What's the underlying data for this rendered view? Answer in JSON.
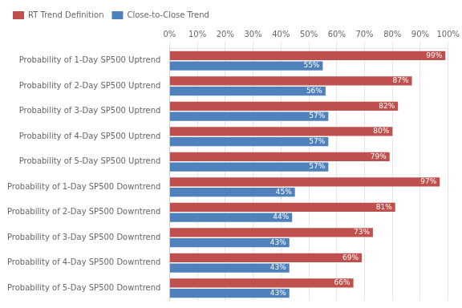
{
  "chart_data": {
    "type": "bar",
    "orientation": "horizontal",
    "categories": [
      "Probability of 1-Day SP500 Uptrend",
      "Probability of 2-Day SP500 Uptrend",
      "Probability of 3-Day SP500 Uptrend",
      "Probability of 4-Day SP500 Uptrend",
      "Probability of 5-Day SP500 Uptrend",
      "Probability of 1-Day SP500 Downtrend",
      "Probability of 2-Day SP500 Downtrend",
      "Probability of 3-Day SP500 Downtrend",
      "Probability of 4-Day SP500 Downtrend",
      "Probability of 5-Day SP500 Downtrend"
    ],
    "series": [
      {
        "name": "RT Trend Definition",
        "color": "#C0504D",
        "values": [
          99,
          87,
          82,
          80,
          79,
          97,
          81,
          73,
          69,
          66
        ],
        "value_labels": [
          "99%",
          "87%",
          "82%",
          "80%",
          "79%",
          "97%",
          "81%",
          "73%",
          "69%",
          "66%"
        ]
      },
      {
        "name": "Close-to-Close Trend",
        "color": "#4F81BD",
        "values": [
          55,
          56,
          57,
          57,
          57,
          45,
          44,
          43,
          43,
          43
        ],
        "value_labels": [
          "55%",
          "56%",
          "57%",
          "57%",
          "57%",
          "45%",
          "44%",
          "43%",
          "43%",
          "43%"
        ]
      }
    ],
    "xlim": [
      0,
      100
    ],
    "xticks": [
      {
        "value": 0,
        "label": "0%"
      },
      {
        "value": 10,
        "label": "10%"
      },
      {
        "value": 20,
        "label": "20%"
      },
      {
        "value": 30,
        "label": "30%"
      },
      {
        "value": 40,
        "label": "40%"
      },
      {
        "value": 50,
        "label": "50%"
      },
      {
        "value": 60,
        "label": "60%"
      },
      {
        "value": 70,
        "label": "70%"
      },
      {
        "value": 80,
        "label": "80%"
      },
      {
        "value": 90,
        "label": "90%"
      },
      {
        "value": 100,
        "label": "100%"
      }
    ],
    "grid": true,
    "legend": "upper left",
    "data_labels": true
  }
}
